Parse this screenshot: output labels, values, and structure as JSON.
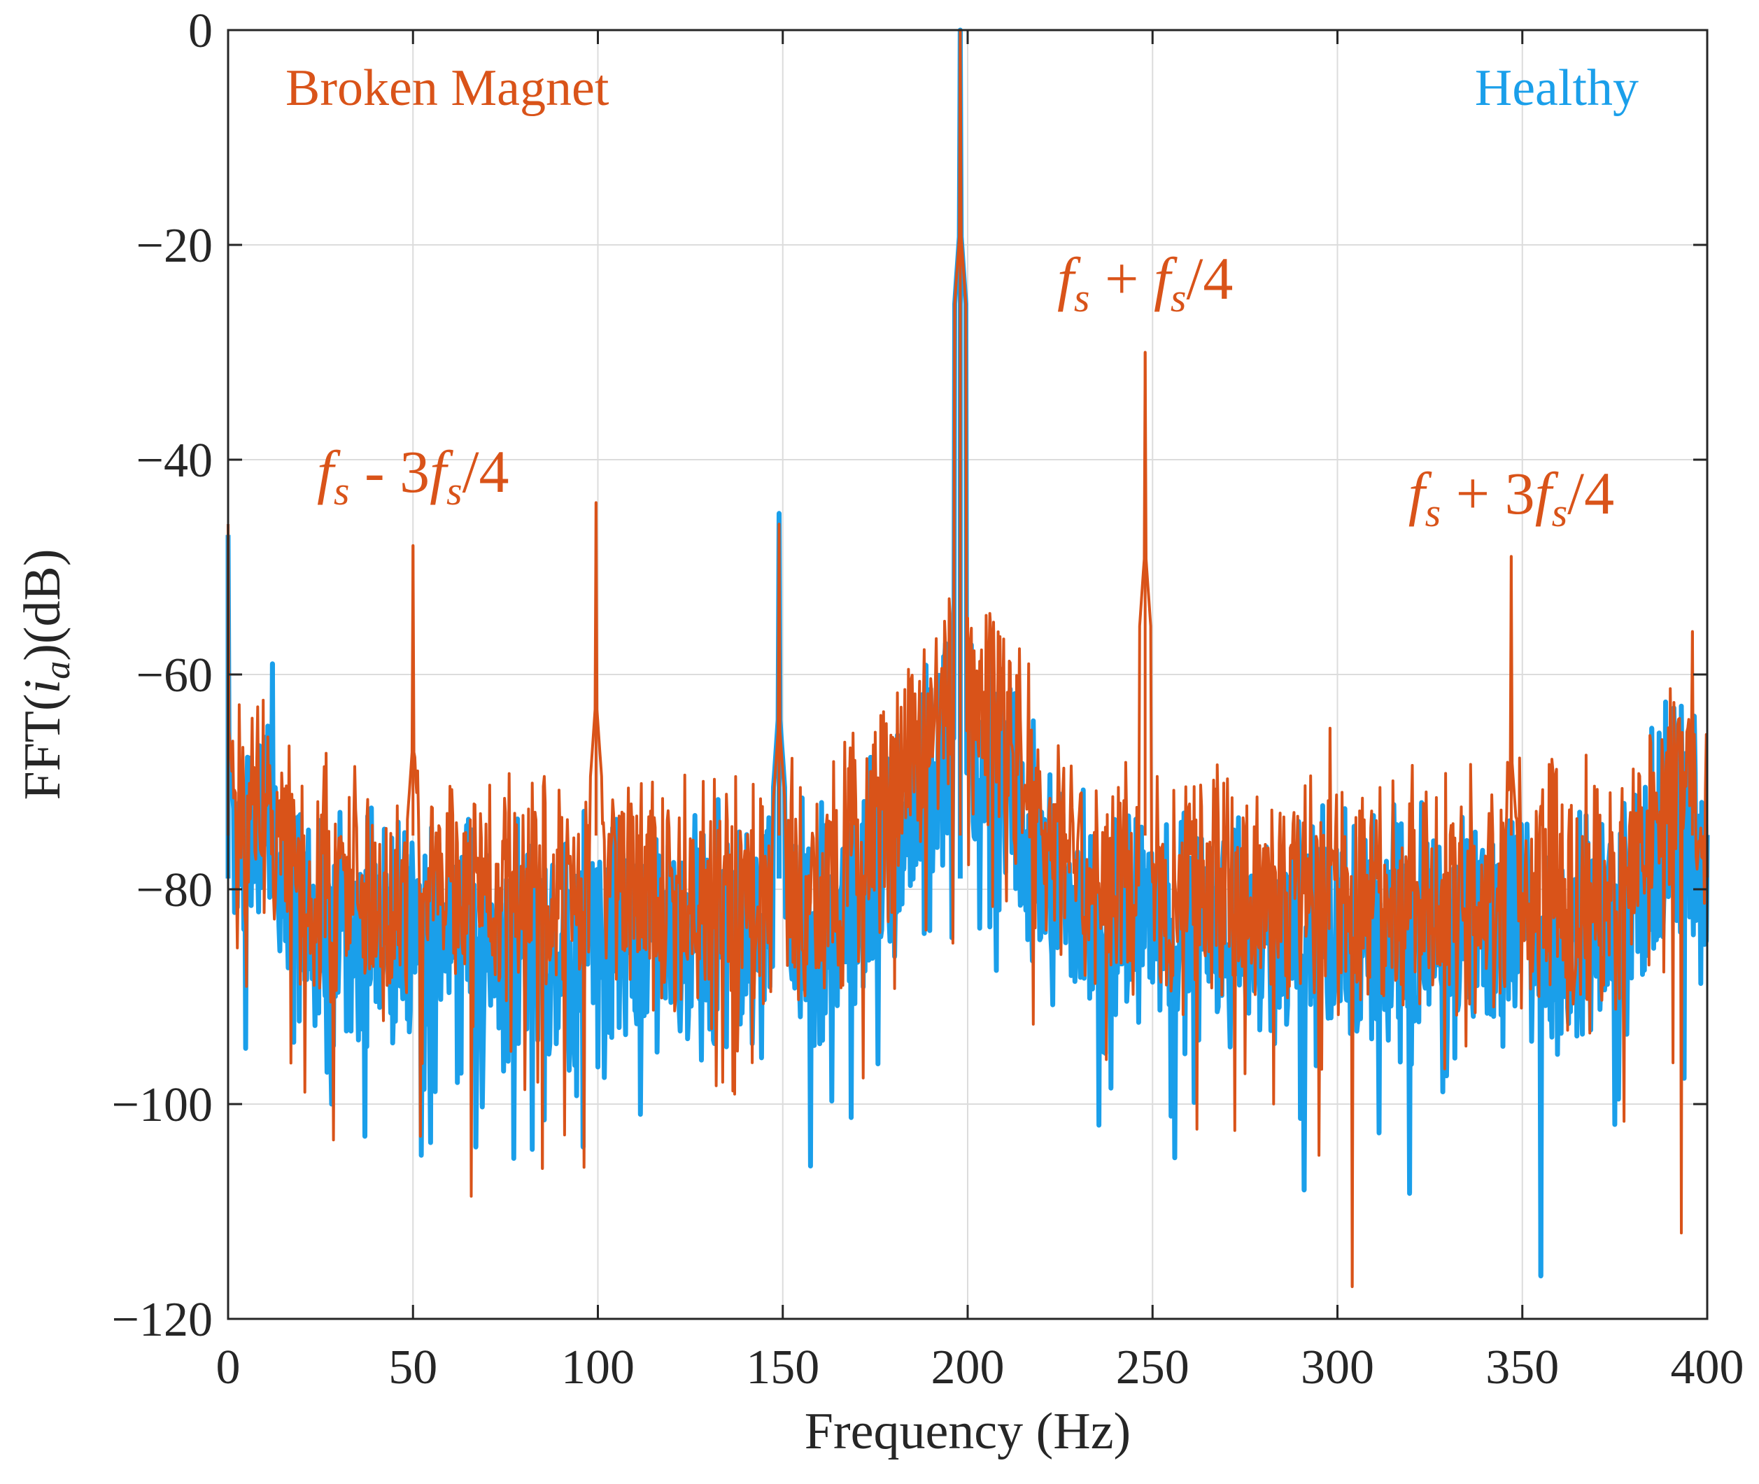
{
  "chart_data": {
    "type": "line",
    "title": "",
    "xlabel": "Frequency (Hz)",
    "ylabel": {
      "prefix": "FFT(",
      "var": "i",
      "sub": "a",
      "suffix": ")(dB)"
    },
    "xlim": [
      0,
      400
    ],
    "ylim": [
      -120,
      0
    ],
    "xticks": [
      0,
      50,
      100,
      150,
      200,
      250,
      300,
      350,
      400
    ],
    "yticks": [
      0,
      -20,
      -40,
      -60,
      -80,
      -100,
      -120
    ],
    "ytick_labels": [
      "0",
      "−20",
      "−40",
      "−60",
      "−80",
      "−100",
      "−120"
    ],
    "grid": true,
    "series": [
      {
        "name": "Healthy",
        "color": "#1a9fea",
        "baseline_db": -84,
        "peaks": [
          {
            "x": 0,
            "y": -47
          },
          {
            "x": 12,
            "y": -59
          },
          {
            "x": 149,
            "y": -45
          },
          {
            "x": 198,
            "y": 0
          },
          {
            "x": 385,
            "y": -65
          },
          {
            "x": 392,
            "y": -66
          }
        ],
        "dips": [
          {
            "x": 28,
            "y": -100
          },
          {
            "x": 37,
            "y": -103
          },
          {
            "x": 67,
            "y": -104
          },
          {
            "x": 96,
            "y": -104
          },
          {
            "x": 256,
            "y": -105
          },
          {
            "x": 291,
            "y": -108
          },
          {
            "x": 355,
            "y": -116
          }
        ]
      },
      {
        "name": "Broken Magnet",
        "color": "#d95319",
        "baseline_db": -80,
        "peaks": [
          {
            "x": 0,
            "y": -46
          },
          {
            "x": 50,
            "y": -48
          },
          {
            "x": 99.5,
            "y": -44
          },
          {
            "x": 149,
            "y": -46
          },
          {
            "x": 198,
            "y": 0
          },
          {
            "x": 248,
            "y": -30
          },
          {
            "x": 298,
            "y": -65
          },
          {
            "x": 347,
            "y": -49
          },
          {
            "x": 396,
            "y": -56
          }
        ],
        "dips": [
          {
            "x": 52,
            "y": -103
          },
          {
            "x": 85,
            "y": -106
          },
          {
            "x": 304,
            "y": -117
          },
          {
            "x": 393,
            "y": -112
          }
        ]
      }
    ],
    "legend": [
      {
        "label": "Broken Magnet",
        "color": "#d95319",
        "position": "top-left"
      },
      {
        "label": "Healthy",
        "color": "#1a9fea",
        "position": "top-right"
      }
    ],
    "annotations": [
      {
        "parts": [
          {
            "t": "f",
            "i": true
          },
          {
            "t": "s",
            "sub": true
          },
          {
            "t": " - 3"
          },
          {
            "t": "f",
            "i": true
          },
          {
            "t": "s",
            "sub": true
          },
          {
            "t": "/4"
          }
        ],
        "x": 50,
        "y": -43,
        "color": "#d95319"
      },
      {
        "parts": [
          {
            "t": "f",
            "i": true
          },
          {
            "t": "s",
            "sub": true
          },
          {
            "t": " + "
          },
          {
            "t": "f",
            "i": true
          },
          {
            "t": "s",
            "sub": true
          },
          {
            "t": "/4"
          }
        ],
        "x": 248,
        "y": -25,
        "color": "#d95319"
      },
      {
        "parts": [
          {
            "t": "f",
            "i": true
          },
          {
            "t": "s",
            "sub": true
          },
          {
            "t": " + 3"
          },
          {
            "t": "f",
            "i": true
          },
          {
            "t": "s",
            "sub": true
          },
          {
            "t": "/4"
          }
        ],
        "x": 347,
        "y": -45,
        "color": "#d95319"
      }
    ]
  }
}
